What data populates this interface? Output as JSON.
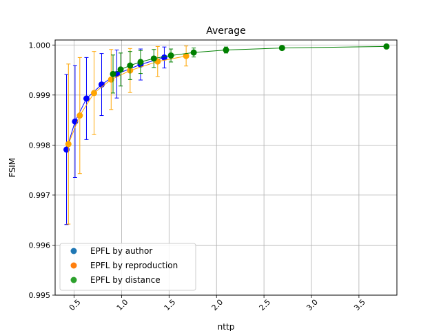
{
  "chart_data": {
    "type": "scatter",
    "title": "Average",
    "xlabel": "nttp",
    "ylabel": "FSIM",
    "xlim": [
      0.3,
      3.9
    ],
    "ylim": [
      0.995,
      1.0001
    ],
    "xticks": [
      0.5,
      1.0,
      1.5,
      2.0,
      2.5,
      3.0,
      3.5
    ],
    "xtick_labels": [
      "0.5",
      "1.0",
      "1.5",
      "2.0",
      "2.5",
      "3.0",
      "3.5"
    ],
    "yticks": [
      0.995,
      0.996,
      0.997,
      0.998,
      0.999,
      1.0
    ],
    "ytick_labels": [
      "0.995",
      "0.996",
      "0.997",
      "0.998",
      "0.999",
      "1.000"
    ],
    "grid": true,
    "legend_placement": "lower-left",
    "series": [
      {
        "name": "EPFL by author",
        "legend_color": "#1f77b4",
        "color": "#0000ff",
        "x": [
          0.42,
          0.51,
          0.63,
          0.79,
          0.95,
          1.2,
          1.45
        ],
        "y": [
          0.99791,
          0.99847,
          0.99893,
          0.99921,
          0.99942,
          0.99961,
          0.99975
        ],
        "yerr": [
          0.0015,
          0.00112,
          0.00082,
          0.00062,
          0.00048,
          0.00031,
          0.00021
        ]
      },
      {
        "name": "EPFL by reproduction",
        "legend_color": "#ff7f0e",
        "color": "#ffa500",
        "x": [
          0.44,
          0.56,
          0.71,
          0.89,
          1.09,
          1.38,
          1.68
        ],
        "y": [
          0.99802,
          0.99859,
          0.99904,
          0.99931,
          0.99949,
          0.99967,
          0.99978
        ],
        "yerr": [
          0.0016,
          0.00116,
          0.00083,
          0.0006,
          0.00044,
          0.0003,
          0.0002
        ]
      },
      {
        "name": "EPFL by distance",
        "legend_color": "#2ca02c",
        "color": "#008000",
        "x": [
          0.91,
          0.99,
          1.09,
          1.2,
          1.34,
          1.52,
          1.76,
          2.1,
          2.69,
          3.79
        ],
        "y": [
          0.99942,
          0.99951,
          0.99959,
          0.99966,
          0.99973,
          0.99979,
          0.99985,
          0.9999,
          0.99994,
          0.99997
        ],
        "yerr": [
          0.00038,
          0.00033,
          0.00028,
          0.00023,
          0.00018,
          0.00013,
          9e-05,
          6e-05,
          4e-05,
          2e-05
        ]
      }
    ]
  }
}
